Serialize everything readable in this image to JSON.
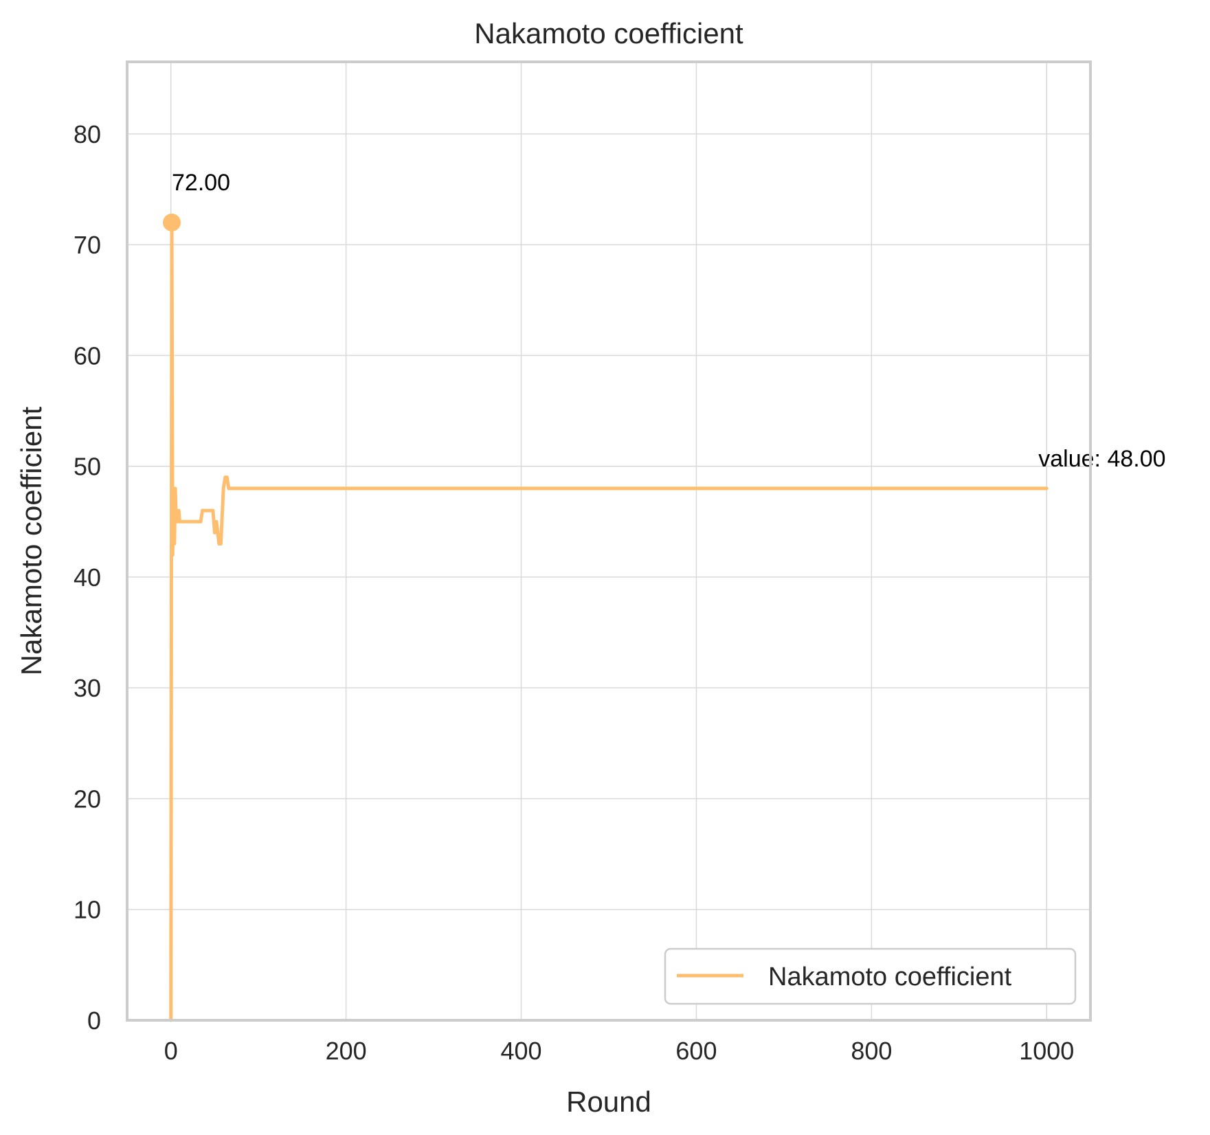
{
  "chart_data": {
    "type": "line",
    "title": "Nakamoto coefficient",
    "xlabel": "Round",
    "ylabel": "Nakamoto coefficient",
    "xlim": [
      -50,
      1050
    ],
    "ylim": [
      0,
      86.5
    ],
    "xticks": [
      0,
      200,
      400,
      600,
      800,
      1000
    ],
    "yticks": [
      0,
      10,
      20,
      30,
      40,
      50,
      60,
      70,
      80
    ],
    "grid": true,
    "legend_position": "lower-right",
    "series": [
      {
        "name": "Nakamoto coefficient",
        "color": "#fdbf6f",
        "x": [
          0,
          1,
          2,
          3,
          4,
          5,
          6,
          7,
          8,
          9,
          10,
          12,
          15,
          20,
          25,
          30,
          34,
          36,
          40,
          45,
          48,
          50,
          52,
          55,
          57,
          60,
          62,
          64,
          66,
          70,
          100,
          200,
          300,
          400,
          500,
          600,
          700,
          800,
          900,
          1000
        ],
        "y": [
          0,
          72,
          42,
          47,
          43,
          48,
          45,
          46,
          45,
          46,
          45,
          45,
          45,
          45,
          45,
          45,
          45,
          46,
          46,
          46,
          46,
          44,
          45,
          43,
          43,
          48,
          49,
          49,
          48,
          48,
          48,
          48,
          48,
          48,
          48,
          48,
          48,
          48,
          48,
          48
        ]
      }
    ],
    "annotations": [
      {
        "x": 1,
        "y": 72,
        "text": "72.00",
        "marker": true
      },
      {
        "x": 1000,
        "y": 48,
        "text": "value: 48.00",
        "marker": false
      }
    ]
  }
}
